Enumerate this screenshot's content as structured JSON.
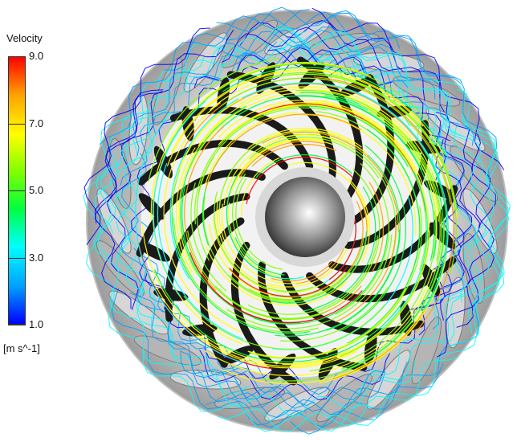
{
  "legend": {
    "title": "Velocity",
    "unit": "[m s^-1]",
    "ticks": [
      "9.0",
      "7.0",
      "5.0",
      "3.0",
      "1.0"
    ],
    "tick_values": [
      9.0,
      7.0,
      5.0,
      3.0,
      1.0
    ],
    "range": [
      1.0,
      9.0
    ],
    "colormap": [
      "#0000ff",
      "#00a0ff",
      "#00ffff",
      "#00ff40",
      "#80ff00",
      "#ffff00",
      "#ffa000",
      "#ff0000"
    ]
  },
  "scene": {
    "description_colors": {
      "blade": "#1a1a1a",
      "blade_light": "#cfcfcf",
      "hub": "#8a8a8a",
      "background": "#ffffff"
    }
  }
}
